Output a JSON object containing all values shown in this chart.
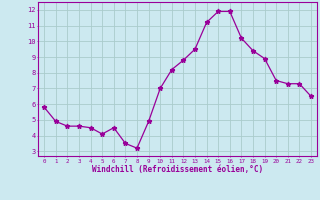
{
  "x": [
    0,
    1,
    2,
    3,
    4,
    5,
    6,
    7,
    8,
    9,
    10,
    11,
    12,
    13,
    14,
    15,
    16,
    17,
    18,
    19,
    20,
    21,
    22,
    23
  ],
  "y": [
    5.8,
    4.9,
    4.6,
    4.6,
    4.5,
    4.1,
    4.5,
    3.5,
    3.2,
    4.9,
    7.0,
    8.2,
    8.8,
    9.5,
    11.2,
    11.9,
    11.9,
    10.2,
    9.4,
    8.9,
    7.5,
    7.3,
    7.3,
    6.5
  ],
  "line_color": "#990099",
  "marker": "*",
  "background_color": "#cce9f0",
  "grid_color": "#aacccc",
  "xlabel": "Windchill (Refroidissement éolien,°C)",
  "xlabel_color": "#990099",
  "ylabel_ticks": [
    3,
    4,
    5,
    6,
    7,
    8,
    9,
    10,
    11,
    12
  ],
  "xtick_labels": [
    "0",
    "1",
    "2",
    "3",
    "4",
    "5",
    "6",
    "7",
    "8",
    "9",
    "10",
    "11",
    "12",
    "13",
    "14",
    "15",
    "16",
    "17",
    "18",
    "19",
    "20",
    "21",
    "22",
    "23"
  ],
  "ylim": [
    2.7,
    12.5
  ],
  "xlim": [
    -0.5,
    23.5
  ],
  "tick_color": "#990099",
  "tick_label_color": "#990099",
  "spine_color": "#990099",
  "figsize": [
    3.2,
    2.0
  ],
  "dpi": 100
}
